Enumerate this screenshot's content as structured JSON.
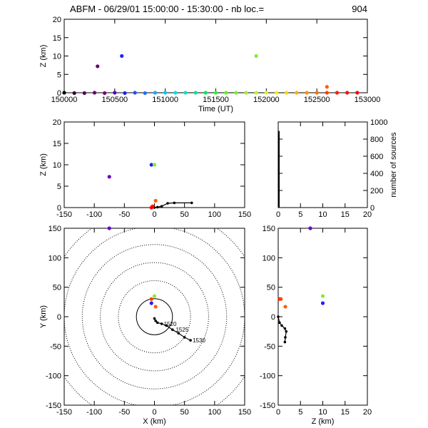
{
  "title": {
    "prefix": "ABFM - 06/29/01 15:00:00 - 15:30:00 - nb loc.=",
    "count": "904"
  },
  "chart_data": [
    {
      "id": "time-height",
      "type": "scatter",
      "xlabel": "Time (UT)",
      "ylabel": "Z (km)",
      "xlim": [
        150000,
        153000
      ],
      "ylim": [
        0,
        20
      ],
      "xticks": [
        "150000",
        "150500",
        "151000",
        "151500",
        "152000",
        "152500",
        "153000"
      ],
      "yticks": [
        "0",
        "5",
        "10",
        "15",
        "20"
      ],
      "points": [
        {
          "x": 150000,
          "y": 0.0,
          "color": "#000000"
        },
        {
          "x": 150100,
          "y": -0.1,
          "color": "#3a003a"
        },
        {
          "x": 150200,
          "y": -0.1,
          "color": "#5a005a"
        },
        {
          "x": 150300,
          "y": 0.0,
          "color": "#6a006a"
        },
        {
          "x": 150330,
          "y": 7.2,
          "color": "#6a006a"
        },
        {
          "x": 150400,
          "y": -0.1,
          "color": "#7a007a"
        },
        {
          "x": 150500,
          "y": 0.0,
          "color": "#5a00c8"
        },
        {
          "x": 150570,
          "y": 10.0,
          "color": "#2020ff"
        },
        {
          "x": 150600,
          "y": -0.1,
          "color": "#2020ff"
        },
        {
          "x": 150700,
          "y": 0.0,
          "color": "#2050ff"
        },
        {
          "x": 150800,
          "y": -0.1,
          "color": "#2070ff"
        },
        {
          "x": 150900,
          "y": 0.0,
          "color": "#20a0ff"
        },
        {
          "x": 151000,
          "y": 0.0,
          "color": "#00c8ff"
        },
        {
          "x": 151100,
          "y": 0.0,
          "color": "#00e0e0"
        },
        {
          "x": 151200,
          "y": 0.0,
          "color": "#00e8c0"
        },
        {
          "x": 151300,
          "y": 0.0,
          "color": "#00e890"
        },
        {
          "x": 151400,
          "y": 0.0,
          "color": "#00e860"
        },
        {
          "x": 151500,
          "y": 0.0,
          "color": "#30f030"
        },
        {
          "x": 151600,
          "y": 0.0,
          "color": "#60f030"
        },
        {
          "x": 151700,
          "y": 0.0,
          "color": "#80f030"
        },
        {
          "x": 151800,
          "y": 0.0,
          "color": "#a0f030"
        },
        {
          "x": 151900,
          "y": 10.0,
          "color": "#80f030"
        },
        {
          "x": 151900,
          "y": 0.0,
          "color": "#c0f030"
        },
        {
          "x": 152000,
          "y": 0.0,
          "color": "#e0f030"
        },
        {
          "x": 152100,
          "y": 0.0,
          "color": "#f0f000"
        },
        {
          "x": 152200,
          "y": 0.0,
          "color": "#f8d800"
        },
        {
          "x": 152300,
          "y": 0.0,
          "color": "#ffb000"
        },
        {
          "x": 152400,
          "y": 0.0,
          "color": "#ff9000"
        },
        {
          "x": 152500,
          "y": 0.0,
          "color": "#ff7000"
        },
        {
          "x": 152600,
          "y": 1.6,
          "color": "#ff6000"
        },
        {
          "x": 152600,
          "y": 0.0,
          "color": "#ff4000"
        },
        {
          "x": 152700,
          "y": 0.0,
          "color": "#ff2000"
        },
        {
          "x": 152800,
          "y": 0.0,
          "color": "#ff1000"
        },
        {
          "x": 152900,
          "y": 0.0,
          "color": "#ff0000"
        }
      ]
    },
    {
      "id": "x-height",
      "type": "scatter",
      "xlabel": "",
      "ylabel": "Z (km)",
      "xlim": [
        -150,
        150
      ],
      "ylim": [
        0,
        20
      ],
      "xticks": [
        "-150",
        "-100",
        "-50",
        "0",
        "50",
        "100",
        "150"
      ],
      "yticks": [
        "0",
        "5",
        "10",
        "15",
        "20"
      ],
      "points": [
        {
          "x": -75,
          "y": 7.2,
          "color": "#6a00c8"
        },
        {
          "x": -5,
          "y": 10.0,
          "color": "#2020ff"
        },
        {
          "x": 0,
          "y": 10.0,
          "color": "#80f030"
        },
        {
          "x": 2,
          "y": 1.6,
          "color": "#ff6000"
        },
        {
          "x": -3,
          "y": 0.3,
          "color": "#ff2000"
        },
        {
          "x": -5,
          "y": 0.0,
          "color": "#ff0000"
        }
      ],
      "track": [
        [
          0,
          0
        ],
        [
          5,
          0.1
        ],
        [
          12,
          0.3
        ],
        [
          22,
          1.0
        ],
        [
          33,
          1.1
        ],
        [
          62,
          1.1
        ]
      ]
    },
    {
      "id": "height-histogram",
      "type": "bar",
      "xlabel": "",
      "ylabel": "number of sources",
      "xlim": [
        0,
        20
      ],
      "ylim": [
        0,
        1000
      ],
      "xticks": [
        "0",
        "5",
        "10",
        "15",
        "20"
      ],
      "yticks": [
        "0",
        "200",
        "400",
        "600",
        "800",
        "1000"
      ],
      "bins": [
        {
          "z": 0.2,
          "count": 895
        },
        {
          "z": 0.6,
          "count": 4
        },
        {
          "z": 1.6,
          "count": 1
        },
        {
          "z": 7.2,
          "count": 1
        },
        {
          "z": 10.0,
          "count": 3
        }
      ]
    },
    {
      "id": "plan-view",
      "type": "scatter",
      "xlabel": "X (km)",
      "ylabel": "Y (km)",
      "xlim": [
        -150,
        150
      ],
      "ylim": [
        -150,
        150
      ],
      "xticks": [
        "-150",
        "-100",
        "-50",
        "0",
        "50",
        "100",
        "150"
      ],
      "yticks": [
        "-150",
        "-100",
        "-50",
        "0",
        "50",
        "100",
        "150"
      ],
      "range_rings_km": [
        30,
        60,
        90,
        120,
        150,
        180
      ],
      "points": [
        {
          "x": -75,
          "y": 150,
          "color": "#6a00c8"
        },
        {
          "x": 0,
          "y": 35,
          "color": "#80f030"
        },
        {
          "x": -5,
          "y": 30,
          "color": "#ff4000"
        },
        {
          "x": -5,
          "y": 23,
          "color": "#2020ff"
        },
        {
          "x": 2,
          "y": 17,
          "color": "#ff6000"
        }
      ],
      "track": [
        [
          0,
          -3
        ],
        [
          2,
          -7
        ],
        [
          5,
          -10
        ],
        [
          12,
          -12
        ],
        [
          20,
          -15
        ],
        [
          30,
          -22
        ],
        [
          40,
          -28
        ],
        [
          50,
          -35
        ],
        [
          60,
          -40
        ]
      ],
      "track_labels": [
        {
          "x": 12,
          "y": -12,
          "text": "1520"
        },
        {
          "x": 32,
          "y": -22,
          "text": "1525"
        },
        {
          "x": 60,
          "y": -40,
          "text": "1530"
        }
      ]
    },
    {
      "id": "height-y",
      "type": "scatter",
      "xlabel": "Z (km)",
      "ylabel": "",
      "xlim": [
        0,
        20
      ],
      "ylim": [
        -150,
        150
      ],
      "xticks": [
        "0",
        "5",
        "10",
        "15",
        "20"
      ],
      "points": [
        {
          "x": 7.2,
          "y": 150,
          "color": "#6a00c8"
        },
        {
          "x": 10.0,
          "y": 35,
          "color": "#80f030"
        },
        {
          "x": 10.0,
          "y": 23,
          "color": "#2020ff"
        },
        {
          "x": 0.3,
          "y": 30,
          "color": "#ff2000"
        },
        {
          "x": 0.6,
          "y": 30,
          "color": "#ff4000"
        },
        {
          "x": 1.6,
          "y": 17,
          "color": "#ff6000"
        }
      ],
      "track": [
        [
          0,
          0
        ],
        [
          0.3,
          -10
        ],
        [
          0.8,
          -15
        ],
        [
          1.5,
          -20
        ],
        [
          1.8,
          -25
        ],
        [
          1.6,
          -35
        ],
        [
          1.5,
          -43
        ]
      ]
    }
  ]
}
